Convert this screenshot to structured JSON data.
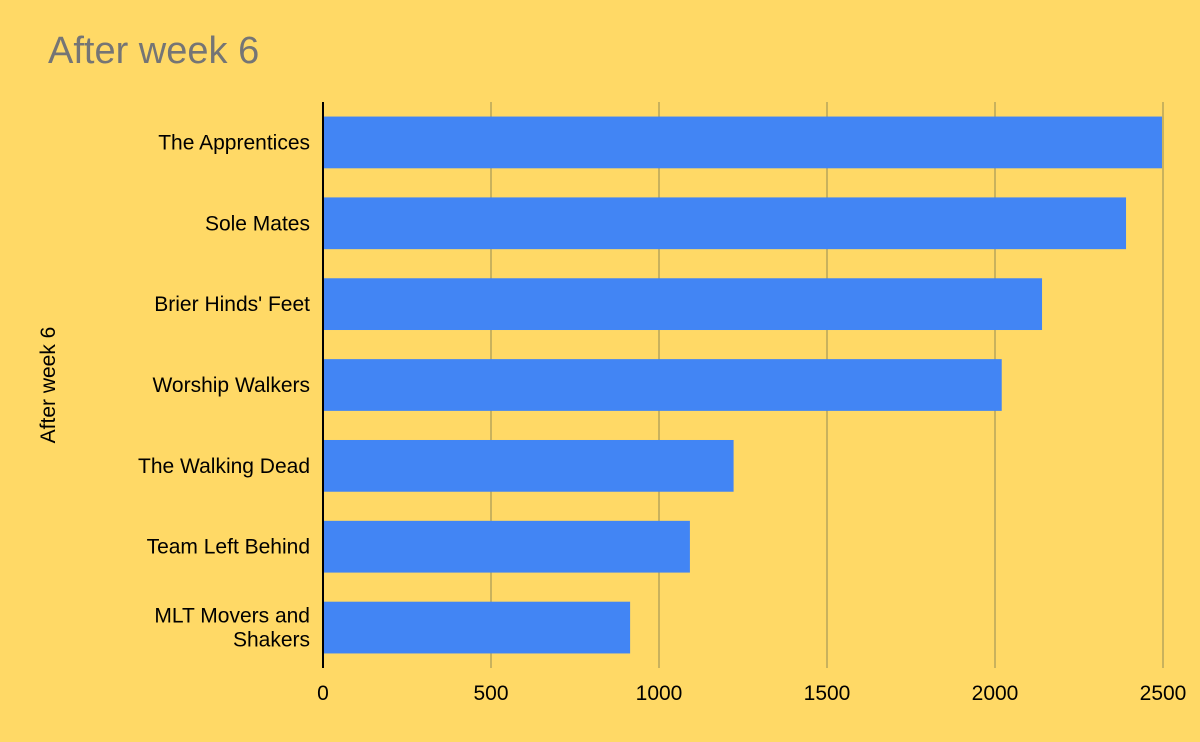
{
  "chart_data": {
    "type": "bar",
    "orientation": "horizontal",
    "title": "After week 6",
    "ylabel": "After week 6",
    "xlabel": "",
    "categories": [
      "The Apprentices",
      "Sole Mates",
      "Brier Hinds' Feet",
      "Worship Walkers",
      "The Walking Dead",
      "Team Left Behind",
      "MLT Movers and Shakers"
    ],
    "values": [
      2497,
      2390,
      2140,
      2020,
      1222,
      1092,
      914
    ],
    "xlim": [
      0,
      2500
    ],
    "xticks": [
      0,
      500,
      1000,
      1500,
      2000,
      2500
    ],
    "grid": true,
    "legend": "none",
    "colors": {
      "background": "#ffd966",
      "bar": "#4285f4",
      "grid": "#b7a55a",
      "axis": "#000000",
      "title": "#757575"
    }
  }
}
